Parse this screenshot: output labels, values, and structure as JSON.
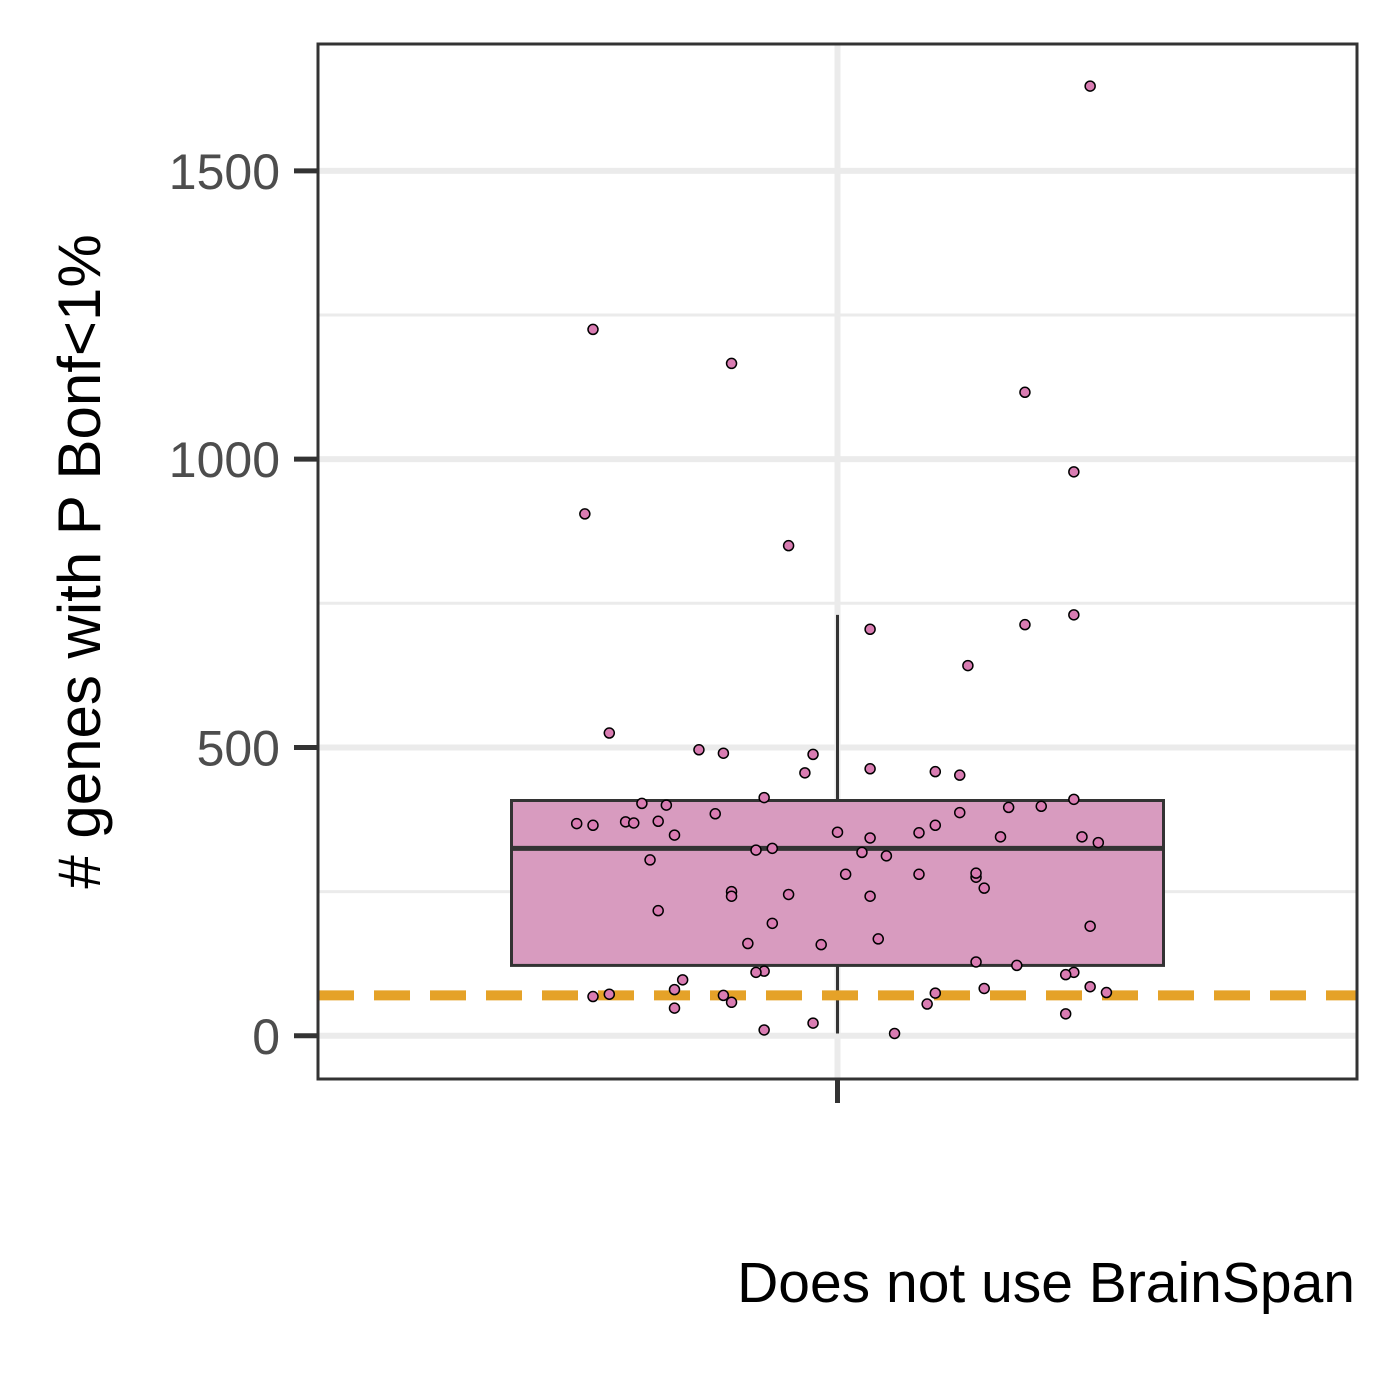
{
  "chart_data": {
    "type": "boxplot",
    "title": "",
    "xlabel": "Does not use BrainSpan",
    "ylabel": "# genes with P Bonf<1%",
    "categories": [
      ""
    ],
    "ylim": [
      -75,
      1720
    ],
    "yticks": [
      0,
      500,
      1000,
      1500
    ],
    "ytick_labels": [
      "0",
      "500",
      "1000",
      "1500"
    ],
    "grid": true,
    "box": {
      "q1": 122,
      "median": 325,
      "q3": 408,
      "whisker_low": 4,
      "whisker_high": 730
    },
    "reference_line": {
      "value": 70,
      "style": "dashed"
    },
    "points": [
      {
        "x": -0.3,
        "y": 1225
      },
      {
        "x": -0.13,
        "y": 1166
      },
      {
        "x": 0.23,
        "y": 1116
      },
      {
        "x": 0.31,
        "y": 1647
      },
      {
        "x": 0.29,
        "y": 978
      },
      {
        "x": -0.31,
        "y": 905
      },
      {
        "x": -0.06,
        "y": 850
      },
      {
        "x": 0.04,
        "y": 705
      },
      {
        "x": 0.23,
        "y": 713
      },
      {
        "x": 0.29,
        "y": 730
      },
      {
        "x": 0.16,
        "y": 642
      },
      {
        "x": -0.28,
        "y": 525
      },
      {
        "x": -0.17,
        "y": 496
      },
      {
        "x": -0.14,
        "y": 490
      },
      {
        "x": -0.03,
        "y": 488
      },
      {
        "x": -0.04,
        "y": 456
      },
      {
        "x": 0.04,
        "y": 463
      },
      {
        "x": 0.12,
        "y": 458
      },
      {
        "x": 0.15,
        "y": 452
      },
      {
        "x": -0.09,
        "y": 413
      },
      {
        "x": -0.24,
        "y": 403
      },
      {
        "x": -0.21,
        "y": 400
      },
      {
        "x": 0.29,
        "y": 410
      },
      {
        "x": 0.21,
        "y": 396
      },
      {
        "x": 0.25,
        "y": 398
      },
      {
        "x": -0.15,
        "y": 385
      },
      {
        "x": 0.15,
        "y": 387
      },
      {
        "x": -0.32,
        "y": 368
      },
      {
        "x": -0.3,
        "y": 365
      },
      {
        "x": -0.26,
        "y": 371
      },
      {
        "x": -0.25,
        "y": 369
      },
      {
        "x": -0.22,
        "y": 372
      },
      {
        "x": 0.12,
        "y": 365
      },
      {
        "x": -0.2,
        "y": 348
      },
      {
        "x": 0.0,
        "y": 353
      },
      {
        "x": 0.04,
        "y": 343
      },
      {
        "x": 0.1,
        "y": 352
      },
      {
        "x": 0.2,
        "y": 345
      },
      {
        "x": 0.3,
        "y": 345
      },
      {
        "x": 0.32,
        "y": 335
      },
      {
        "x": -0.1,
        "y": 322
      },
      {
        "x": -0.08,
        "y": 325
      },
      {
        "x": 0.03,
        "y": 318
      },
      {
        "x": 0.06,
        "y": 312
      },
      {
        "x": -0.23,
        "y": 305
      },
      {
        "x": 0.01,
        "y": 280
      },
      {
        "x": 0.1,
        "y": 280
      },
      {
        "x": 0.17,
        "y": 275
      },
      {
        "x": 0.17,
        "y": 282
      },
      {
        "x": 0.18,
        "y": 256
      },
      {
        "x": -0.13,
        "y": 250
      },
      {
        "x": -0.13,
        "y": 242
      },
      {
        "x": -0.06,
        "y": 245
      },
      {
        "x": 0.04,
        "y": 242
      },
      {
        "x": -0.22,
        "y": 217
      },
      {
        "x": -0.08,
        "y": 195
      },
      {
        "x": 0.31,
        "y": 190
      },
      {
        "x": 0.05,
        "y": 168
      },
      {
        "x": -0.11,
        "y": 160
      },
      {
        "x": -0.02,
        "y": 158
      },
      {
        "x": 0.17,
        "y": 128
      },
      {
        "x": 0.22,
        "y": 122
      },
      {
        "x": -0.09,
        "y": 112
      },
      {
        "x": -0.1,
        "y": 110
      },
      {
        "x": 0.29,
        "y": 110
      },
      {
        "x": 0.28,
        "y": 106
      },
      {
        "x": -0.19,
        "y": 97
      },
      {
        "x": -0.2,
        "y": 80
      },
      {
        "x": 0.18,
        "y": 82
      },
      {
        "x": 0.31,
        "y": 85
      },
      {
        "x": 0.33,
        "y": 75
      },
      {
        "x": -0.3,
        "y": 68
      },
      {
        "x": -0.28,
        "y": 72
      },
      {
        "x": -0.14,
        "y": 70
      },
      {
        "x": 0.12,
        "y": 74
      },
      {
        "x": 0.11,
        "y": 55
      },
      {
        "x": -0.13,
        "y": 58
      },
      {
        "x": -0.2,
        "y": 48
      },
      {
        "x": 0.28,
        "y": 38
      },
      {
        "x": -0.03,
        "y": 22
      },
      {
        "x": -0.09,
        "y": 10
      },
      {
        "x": 0.07,
        "y": 4
      }
    ],
    "colors": {
      "box_fill": "#d89bbf",
      "box_stroke": "#333333",
      "point_fill": "#d97cb2",
      "point_stroke": "#000000",
      "reference_line": "#e5a228",
      "grid": "#ebebeb",
      "panel_border": "#333333"
    }
  }
}
